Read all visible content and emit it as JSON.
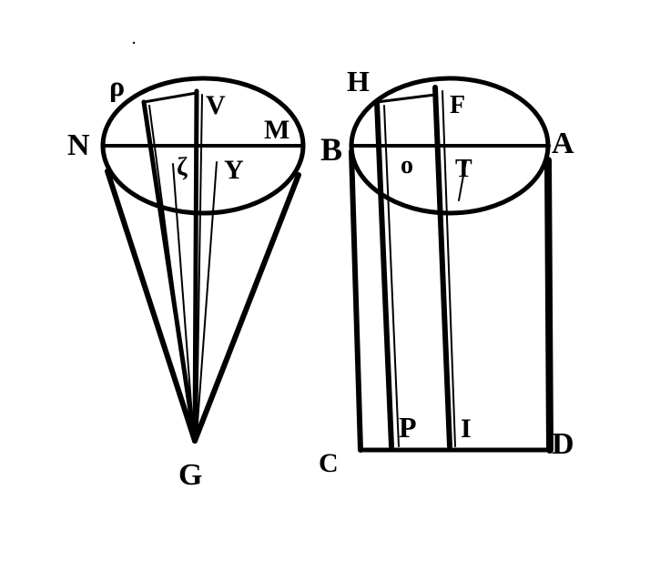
{
  "figure": {
    "cone": {
      "labels": {
        "rho": "ρ",
        "v": "V",
        "n": "N",
        "m": "M",
        "zeta": "ζ",
        "y": "Y",
        "g": "G"
      }
    },
    "cylinder": {
      "labels": {
        "h": "H",
        "f": "F",
        "b": "B",
        "a": "A",
        "o": "o",
        "t": "T",
        "p": "P",
        "i": "I",
        "c": "C",
        "d": "D"
      }
    },
    "colors": {
      "ink": "#000000",
      "paper": "#ffffff"
    }
  }
}
